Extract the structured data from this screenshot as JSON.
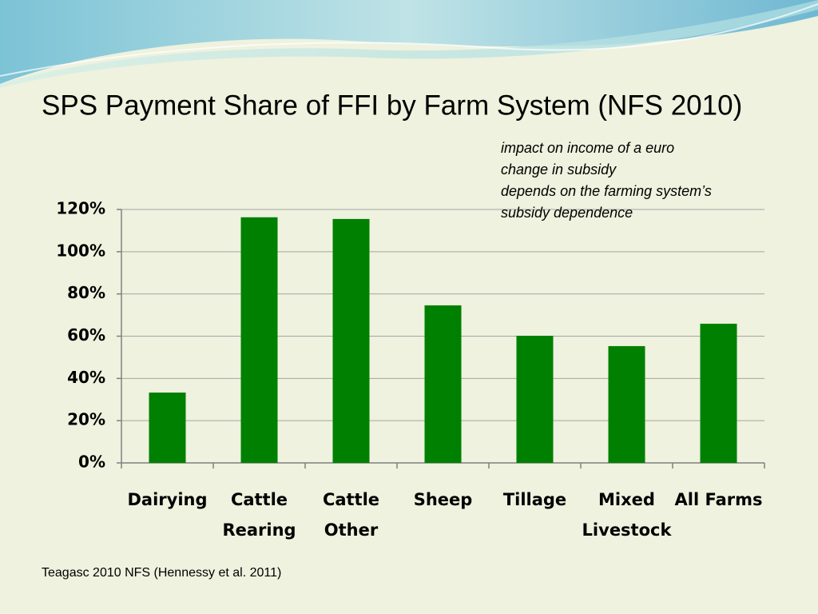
{
  "chart_data": {
    "type": "bar",
    "title": "SPS Payment Share of FFI by Farm System (NFS 2010)",
    "annotation": [
      "impact on income of a euro",
      "change in subsidy",
      "depends on the farming system’s",
      "subsidy dependence"
    ],
    "source": "Teagasc 2010 NFS (Hennessy et al. 2011)",
    "categories": [
      [
        "Dairying"
      ],
      [
        "Cattle",
        "Rearing"
      ],
      [
        "Cattle",
        "Other"
      ],
      [
        "Sheep"
      ],
      [
        "Tillage"
      ],
      [
        "Mixed",
        "Livestock"
      ],
      [
        "All Farms"
      ]
    ],
    "values": [
      33.3,
      116.3,
      115.5,
      74.6,
      60.2,
      55.3,
      65.9
    ],
    "color": "#008000",
    "ylim": [
      0,
      120
    ],
    "yticks": [
      {
        "value": 0,
        "label": "0%"
      },
      {
        "value": 20,
        "label": "20%"
      },
      {
        "value": 40,
        "label": "40%"
      },
      {
        "value": 60,
        "label": "60%"
      },
      {
        "value": 80,
        "label": "80%"
      },
      {
        "value": 100,
        "label": "100%"
      },
      {
        "value": 120,
        "label": "120%"
      }
    ],
    "grid": true
  }
}
